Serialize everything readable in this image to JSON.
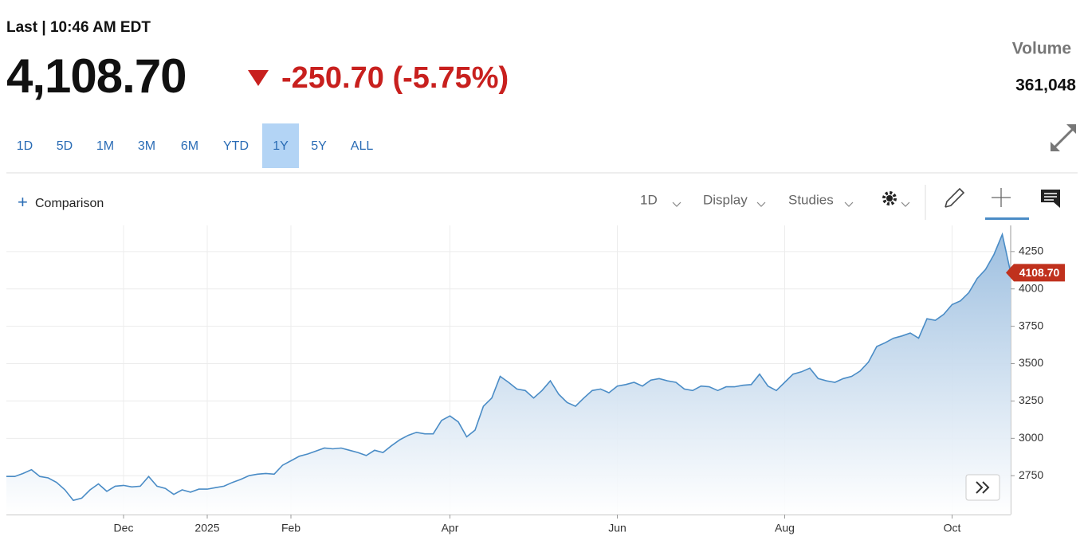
{
  "header": {
    "last": "Last | 10:46 AM EDT",
    "price": "4,108.70",
    "change": "-250.70 (-5.75%)",
    "volume_label": "Volume",
    "volume": "361,048"
  },
  "ranges": [
    "1D",
    "5D",
    "1M",
    "3M",
    "6M",
    "YTD",
    "1Y",
    "5Y",
    "ALL"
  ],
  "active_range": 6,
  "toolbar": {
    "comparison": "Comparison",
    "interval": "1D",
    "display": "Display",
    "studies": "Studies"
  },
  "chart_data": {
    "type": "area",
    "categories": [
      null,
      null,
      null,
      null,
      null,
      null,
      null,
      null,
      null,
      null,
      null,
      null,
      null,
      null,
      "Dec",
      null,
      null,
      null,
      null,
      null,
      null,
      null,
      null,
      null,
      "2025",
      null,
      null,
      null,
      null,
      null,
      null,
      null,
      null,
      null,
      "Feb",
      null,
      null,
      null,
      null,
      null,
      null,
      null,
      null,
      null,
      null,
      null,
      null,
      null,
      null,
      null,
      null,
      null,
      null,
      "Apr",
      null,
      null,
      null,
      null,
      null,
      null,
      null,
      null,
      null,
      null,
      null,
      null,
      null,
      null,
      null,
      null,
      null,
      null,
      null,
      "Jun",
      null,
      null,
      null,
      null,
      null,
      null,
      null,
      null,
      null,
      null,
      null,
      null,
      null,
      null,
      null,
      null,
      null,
      null,
      null,
      "Aug",
      null,
      null,
      null,
      null,
      null,
      null,
      null,
      null,
      null,
      null,
      null,
      null,
      null,
      null,
      null,
      null,
      null,
      null,
      null,
      "Oct",
      null,
      null,
      null,
      null,
      null,
      null,
      null
    ],
    "values": [
      2745,
      2745,
      2765,
      2790,
      2745,
      2735,
      2705,
      2655,
      2585,
      2600,
      2655,
      2695,
      2645,
      2680,
      2685,
      2675,
      2680,
      2745,
      2680,
      2665,
      2625,
      2655,
      2640,
      2660,
      2660,
      2670,
      2680,
      2705,
      2725,
      2750,
      2760,
      2765,
      2760,
      2820,
      2850,
      2880,
      2895,
      2915,
      2935,
      2930,
      2935,
      2920,
      2905,
      2885,
      2920,
      2905,
      2950,
      2990,
      3020,
      3040,
      3030,
      3030,
      3120,
      3150,
      3110,
      3010,
      3055,
      3215,
      3270,
      3415,
      3375,
      3330,
      3320,
      3270,
      3320,
      3385,
      3295,
      3240,
      3215,
      3270,
      3320,
      3330,
      3305,
      3350,
      3360,
      3375,
      3350,
      3390,
      3400,
      3385,
      3375,
      3330,
      3320,
      3350,
      3345,
      3320,
      3345,
      3345,
      3355,
      3360,
      3430,
      3350,
      3320,
      3375,
      3430,
      3445,
      3470,
      3400,
      3385,
      3375,
      3400,
      3415,
      3450,
      3510,
      3615,
      3640,
      3670,
      3685,
      3705,
      3670,
      3800,
      3790,
      3830,
      3895,
      3920,
      3975,
      4070,
      4130,
      4230,
      4365,
      4108.7
    ],
    "last_tag": "4108.70",
    "color": "#4a8cc6",
    "tag_color": "#c0311d",
    "ylim": [
      2490,
      4425
    ],
    "yticks": [
      2750,
      3000,
      3250,
      3500,
      3750,
      4000,
      4250
    ],
    "grid": true
  }
}
